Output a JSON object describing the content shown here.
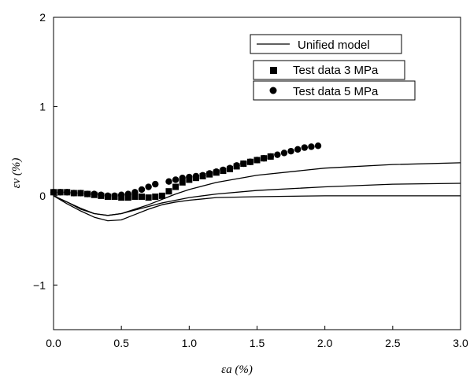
{
  "chart_data": {
    "type": "scatter",
    "title": "",
    "xlabel": "εa (%)",
    "ylabel": "εv (%)",
    "xlim": [
      0,
      3.0
    ],
    "ylim": [
      -1.5,
      2
    ],
    "xticks": [
      0.0,
      0.5,
      1.0,
      1.5,
      2.0,
      2.5,
      3.0
    ],
    "xtick_labels": [
      "0.0",
      "0.5",
      "1.0",
      "1.5",
      "2.0",
      "2.5",
      "3.0"
    ],
    "yticks": [
      -1,
      0,
      1,
      2
    ],
    "ytick_labels": [
      "−1",
      "0",
      "1",
      "2"
    ],
    "legend_position": "top-right",
    "series": [
      {
        "name": "Unified model",
        "kind": "line",
        "color": "#000000",
        "curves": [
          {
            "x": [
              0,
              0.1,
              0.2,
              0.3,
              0.4,
              0.5,
              0.55,
              0.6,
              0.7,
              0.8,
              0.9,
              1.0,
              1.2,
              1.5,
              2.0,
              2.5,
              3.0
            ],
            "y": [
              0,
              -0.09,
              -0.17,
              -0.24,
              -0.28,
              -0.27,
              -0.24,
              -0.21,
              -0.15,
              -0.1,
              -0.07,
              -0.05,
              -0.02,
              -0.01,
              0,
              0,
              0
            ]
          },
          {
            "x": [
              0,
              0.1,
              0.2,
              0.3,
              0.4,
              0.5,
              0.6,
              0.7,
              0.8,
              0.9,
              1.0,
              1.2,
              1.5,
              2.0,
              2.5,
              3.0
            ],
            "y": [
              0,
              -0.07,
              -0.15,
              -0.2,
              -0.22,
              -0.2,
              -0.16,
              -0.12,
              -0.08,
              -0.05,
              -0.02,
              0.02,
              0.06,
              0.1,
              0.13,
              0.14
            ]
          },
          {
            "x": [
              0,
              0.1,
              0.2,
              0.3,
              0.4,
              0.5,
              0.6,
              0.7,
              0.8,
              0.9,
              1.0,
              1.2,
              1.5,
              2.0,
              2.5,
              3.0
            ],
            "y": [
              0,
              -0.07,
              -0.14,
              -0.2,
              -0.22,
              -0.2,
              -0.15,
              -0.1,
              -0.04,
              0.02,
              0.07,
              0.15,
              0.23,
              0.31,
              0.35,
              0.37
            ]
          }
        ]
      },
      {
        "name": "Test data 3 MPa",
        "kind": "square",
        "color": "#000000",
        "x": [
          0.0,
          0.05,
          0.1,
          0.15,
          0.2,
          0.25,
          0.3,
          0.35,
          0.4,
          0.45,
          0.5,
          0.55,
          0.6,
          0.65,
          0.7,
          0.75,
          0.8,
          0.85,
          0.9,
          0.95,
          1.0,
          1.05,
          1.1,
          1.15,
          1.2,
          1.25,
          1.3,
          1.35,
          1.4,
          1.45,
          1.5,
          1.55,
          1.6
        ],
        "y": [
          0.04,
          0.04,
          0.04,
          0.03,
          0.03,
          0.02,
          0.01,
          0.0,
          -0.01,
          -0.01,
          -0.02,
          -0.02,
          -0.01,
          -0.01,
          -0.02,
          -0.01,
          0.0,
          0.05,
          0.1,
          0.15,
          0.18,
          0.2,
          0.22,
          0.24,
          0.26,
          0.28,
          0.3,
          0.33,
          0.36,
          0.38,
          0.4,
          0.42,
          0.44
        ]
      },
      {
        "name": "Test data 5 MPa",
        "kind": "circle",
        "color": "#000000",
        "x": [
          0.0,
          0.05,
          0.1,
          0.15,
          0.2,
          0.25,
          0.3,
          0.35,
          0.4,
          0.45,
          0.5,
          0.55,
          0.6,
          0.65,
          0.7,
          0.75,
          0.85,
          0.9,
          0.95,
          1.0,
          1.05,
          1.1,
          1.15,
          1.2,
          1.25,
          1.3,
          1.35,
          1.4,
          1.45,
          1.5,
          1.55,
          1.6,
          1.65,
          1.7,
          1.75,
          1.8,
          1.85,
          1.9,
          1.95
        ],
        "y": [
          0.04,
          0.04,
          0.04,
          0.03,
          0.03,
          0.02,
          0.02,
          0.01,
          0.0,
          0.0,
          0.01,
          0.02,
          0.04,
          0.07,
          0.1,
          0.13,
          0.16,
          0.18,
          0.2,
          0.21,
          0.22,
          0.23,
          0.25,
          0.27,
          0.29,
          0.31,
          0.34,
          0.36,
          0.38,
          0.4,
          0.42,
          0.44,
          0.46,
          0.48,
          0.5,
          0.52,
          0.54,
          0.55,
          0.56
        ]
      }
    ]
  }
}
